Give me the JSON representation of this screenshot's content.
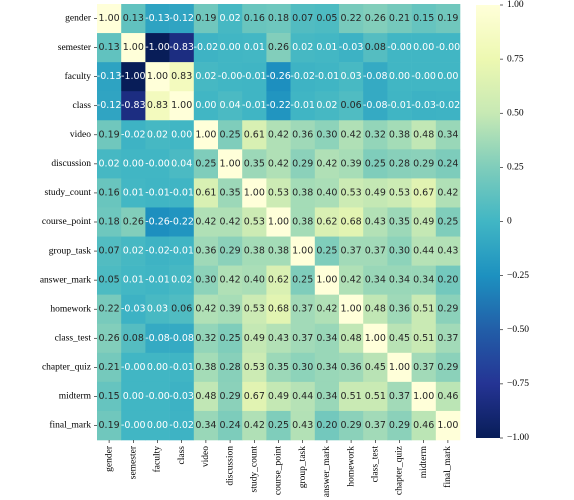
{
  "chart_data": {
    "type": "heatmap",
    "colormap": "YlGnBu",
    "clim": [
      -1,
      1
    ],
    "cticks": [
      {
        "value": 1,
        "label": "1.00"
      },
      {
        "value": 0.75,
        "label": "0.75"
      },
      {
        "value": 0.5,
        "label": "0.50"
      },
      {
        "value": 0.25,
        "label": "0.25"
      },
      0,
      {
        "value": -0.25,
        "label": "−0.25"
      },
      {
        "value": -0.5,
        "label": "−0.50"
      },
      {
        "value": -0.75,
        "label": "−0.75"
      },
      {
        "value": -1,
        "label": "−1.00"
      }
    ],
    "x_categories": [
      "gender",
      "semester",
      "faculty",
      "class",
      "video",
      "discussion",
      "study_count",
      "course_point",
      "group_task",
      "answer_mark",
      "homework",
      "class_test",
      "chapter_quiz",
      "midterm",
      "final_mark"
    ],
    "y_categories": [
      "gender",
      "semester",
      "faculty",
      "class",
      "video",
      "discussion",
      "study_count",
      "course_point",
      "group_task",
      "answer_mark",
      "homework",
      "class_test",
      "chapter_quiz",
      "midterm",
      "final_mark"
    ],
    "values": [
      [
        1,
        0.13,
        -0.13,
        -0.12,
        0.19,
        0.02,
        0.16,
        0.18,
        0.07,
        0.05,
        0.22,
        0.26,
        0.21,
        0.15,
        0.19
      ],
      [
        0.13,
        1,
        -1,
        -0.83,
        -0.02,
        0,
        0.01,
        0.26,
        0.02,
        0.01,
        -0.03,
        0.08,
        0,
        0,
        0
      ],
      [
        -0.13,
        -1,
        1,
        0.83,
        0.02,
        0,
        -0.01,
        -0.26,
        -0.02,
        -0.01,
        0.03,
        -0.08,
        0,
        0,
        0
      ],
      [
        -0.12,
        -0.83,
        0.83,
        1,
        0,
        0.04,
        -0.01,
        -0.22,
        -0.01,
        0.02,
        0.06,
        -0.08,
        -0.01,
        -0.03,
        -0.02
      ],
      [
        0.19,
        -0.02,
        0.02,
        0,
        1,
        0.25,
        0.61,
        0.42,
        0.36,
        0.3,
        0.42,
        0.32,
        0.38,
        0.48,
        0.34
      ],
      [
        0.02,
        0,
        0,
        0.04,
        0.25,
        1,
        0.35,
        0.42,
        0.29,
        0.42,
        0.39,
        0.25,
        0.28,
        0.29,
        0.24
      ],
      [
        0.16,
        0.01,
        -0.01,
        -0.01,
        0.61,
        0.35,
        1,
        0.53,
        0.38,
        0.4,
        0.53,
        0.49,
        0.53,
        0.67,
        0.42
      ],
      [
        0.18,
        0.26,
        -0.26,
        -0.22,
        0.42,
        0.42,
        0.53,
        1,
        0.38,
        0.62,
        0.68,
        0.43,
        0.35,
        0.49,
        0.25
      ],
      [
        0.07,
        0.02,
        -0.02,
        -0.01,
        0.36,
        0.29,
        0.38,
        0.38,
        1,
        0.25,
        0.37,
        0.37,
        0.3,
        0.44,
        0.43
      ],
      [
        0.05,
        0.01,
        -0.01,
        0.02,
        0.3,
        0.42,
        0.4,
        0.62,
        0.25,
        1,
        0.42,
        0.34,
        0.34,
        0.34,
        0.2
      ],
      [
        0.22,
        -0.03,
        0.03,
        0.06,
        0.42,
        0.39,
        0.53,
        0.68,
        0.37,
        0.42,
        1,
        0.48,
        0.36,
        0.51,
        0.29
      ],
      [
        0.26,
        0.08,
        -0.08,
        -0.08,
        0.32,
        0.25,
        0.49,
        0.43,
        0.37,
        0.34,
        0.48,
        1,
        0.45,
        0.51,
        0.37
      ],
      [
        0.21,
        0,
        0,
        -0.01,
        0.38,
        0.28,
        0.53,
        0.35,
        0.3,
        0.34,
        0.36,
        0.45,
        1,
        0.37,
        0.29
      ],
      [
        0.15,
        0,
        0,
        -0.03,
        0.48,
        0.29,
        0.67,
        0.49,
        0.44,
        0.34,
        0.51,
        0.51,
        0.37,
        1,
        0.46
      ],
      [
        0.19,
        0,
        0,
        -0.02,
        0.34,
        0.24,
        0.42,
        0.25,
        0.43,
        0.2,
        0.29,
        0.37,
        0.29,
        0.46,
        1
      ]
    ],
    "value_labels": [
      [
        "1.00",
        "0.13",
        "-0.13",
        "-0.12",
        "0.19",
        "0.02",
        "0.16",
        "0.18",
        "0.07",
        "0.05",
        "0.22",
        "0.26",
        "0.21",
        "0.15",
        "0.19"
      ],
      [
        "0.13",
        "1.00",
        "-1.00",
        "-0.83",
        "-0.02",
        "0.00",
        "0.01",
        "0.26",
        "0.02",
        "0.01",
        "-0.03",
        "0.08",
        "-0.00",
        "0.00",
        "-0.00"
      ],
      [
        "-0.13",
        "-1.00",
        "1.00",
        "0.83",
        "0.02",
        "-0.00",
        "-0.01",
        "-0.26",
        "-0.02",
        "-0.01",
        "0.03",
        "-0.08",
        "0.00",
        "-0.00",
        "0.00"
      ],
      [
        "-0.12",
        "-0.83",
        "0.83",
        "1.00",
        "0.00",
        "0.04",
        "-0.01",
        "-0.22",
        "-0.01",
        "0.02",
        "0.06",
        "-0.08",
        "-0.01",
        "-0.03",
        "-0.02"
      ],
      [
        "0.19",
        "-0.02",
        "0.02",
        "0.00",
        "1.00",
        "0.25",
        "0.61",
        "0.42",
        "0.36",
        "0.30",
        "0.42",
        "0.32",
        "0.38",
        "0.48",
        "0.34"
      ],
      [
        "0.02",
        "0.00",
        "-0.00",
        "0.04",
        "0.25",
        "1.00",
        "0.35",
        "0.42",
        "0.29",
        "0.42",
        "0.39",
        "0.25",
        "0.28",
        "0.29",
        "0.24"
      ],
      [
        "0.16",
        "0.01",
        "-0.01",
        "-0.01",
        "0.61",
        "0.35",
        "1.00",
        "0.53",
        "0.38",
        "0.40",
        "0.53",
        "0.49",
        "0.53",
        "0.67",
        "0.42"
      ],
      [
        "0.18",
        "0.26",
        "-0.26",
        "-0.22",
        "0.42",
        "0.42",
        "0.53",
        "1.00",
        "0.38",
        "0.62",
        "0.68",
        "0.43",
        "0.35",
        "0.49",
        "0.25"
      ],
      [
        "0.07",
        "0.02",
        "-0.02",
        "-0.01",
        "0.36",
        "0.29",
        "0.38",
        "0.38",
        "1.00",
        "0.25",
        "0.37",
        "0.37",
        "0.30",
        "0.44",
        "0.43"
      ],
      [
        "0.05",
        "0.01",
        "-0.01",
        "0.02",
        "0.30",
        "0.42",
        "0.40",
        "0.62",
        "0.25",
        "1.00",
        "0.42",
        "0.34",
        "0.34",
        "0.34",
        "0.20"
      ],
      [
        "0.22",
        "-0.03",
        "0.03",
        "0.06",
        "0.42",
        "0.39",
        "0.53",
        "0.68",
        "0.37",
        "0.42",
        "1.00",
        "0.48",
        "0.36",
        "0.51",
        "0.29"
      ],
      [
        "0.26",
        "0.08",
        "-0.08",
        "-0.08",
        "0.32",
        "0.25",
        "0.49",
        "0.43",
        "0.37",
        "0.34",
        "0.48",
        "1.00",
        "0.45",
        "0.51",
        "0.37"
      ],
      [
        "0.21",
        "-0.00",
        "0.00",
        "-0.01",
        "0.38",
        "0.28",
        "0.53",
        "0.35",
        "0.30",
        "0.34",
        "0.36",
        "0.45",
        "1.00",
        "0.37",
        "0.29"
      ],
      [
        "0.15",
        "0.00",
        "-0.00",
        "-0.03",
        "0.48",
        "0.29",
        "0.67",
        "0.49",
        "0.44",
        "0.34",
        "0.51",
        "0.51",
        "0.37",
        "1.00",
        "0.46"
      ],
      [
        "0.19",
        "-0.00",
        "0.00",
        "-0.02",
        "0.34",
        "0.24",
        "0.42",
        "0.25",
        "0.43",
        "0.20",
        "0.29",
        "0.37",
        "0.29",
        "0.46",
        "1.00"
      ]
    ]
  }
}
